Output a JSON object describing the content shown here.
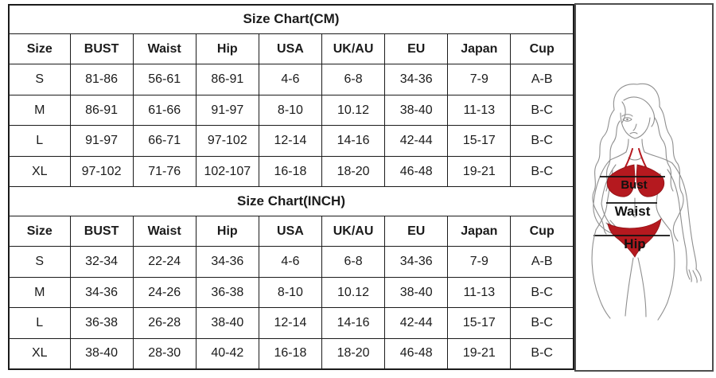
{
  "tables": [
    {
      "title": "Size Chart(CM)",
      "headers": [
        "Size",
        "BUST",
        "Waist",
        "Hip",
        "USA",
        "UK/AU",
        "EU",
        "Japan",
        "Cup"
      ],
      "rows": [
        [
          "S",
          "81-86",
          "56-61",
          "86-91",
          "4-6",
          "6-8",
          "34-36",
          "7-9",
          "A-B"
        ],
        [
          "M",
          "86-91",
          "61-66",
          "91-97",
          "8-10",
          "10.12",
          "38-40",
          "11-13",
          "B-C"
        ],
        [
          "L",
          "91-97",
          "66-71",
          "97-102",
          "12-14",
          "14-16",
          "42-44",
          "15-17",
          "B-C"
        ],
        [
          "XL",
          "97-102",
          "71-76",
          "102-107",
          "16-18",
          "18-20",
          "46-48",
          "19-21",
          "B-C"
        ]
      ]
    },
    {
      "title": "Size Chart(INCH)",
      "headers": [
        "Size",
        "BUST",
        "Waist",
        "Hip",
        "USA",
        "UK/AU",
        "EU",
        "Japan",
        "Cup"
      ],
      "rows": [
        [
          "S",
          "32-34",
          "22-24",
          "34-36",
          "4-6",
          "6-8",
          "34-36",
          "7-9",
          "A-B"
        ],
        [
          "M",
          "34-36",
          "24-26",
          "36-38",
          "8-10",
          "10.12",
          "38-40",
          "11-13",
          "B-C"
        ],
        [
          "L",
          "36-38",
          "26-28",
          "38-40",
          "12-14",
          "14-16",
          "42-44",
          "15-17",
          "B-C"
        ],
        [
          "XL",
          "38-40",
          "28-30",
          "40-42",
          "16-18",
          "18-20",
          "46-48",
          "19-21",
          "B-C"
        ]
      ]
    }
  ],
  "figure": {
    "labels": {
      "bust": "Bust",
      "waist": "Waist",
      "hip": "Hip"
    },
    "colors": {
      "bikini_red": "#b5191f",
      "sketch_line": "#8f8f8f",
      "measure_line": "#111111",
      "panel_border": "#4d4d4d",
      "table_border": "#1b1b1b"
    }
  }
}
